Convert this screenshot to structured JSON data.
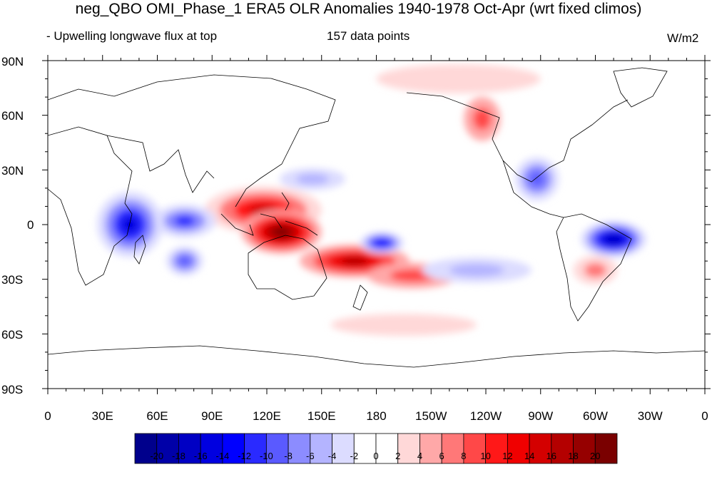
{
  "title": "neg_QBO OMI_Phase_1 ERA5 OLR Anomalies 1940-1978 Oct-Apr (wrt fixed climos)",
  "subtitle": "- Upwelling longwave flux at top",
  "data_points": "157 data points",
  "units": "W/m2",
  "lat_labels": [
    "90N",
    "60N",
    "30N",
    "0",
    "30S",
    "60S",
    "90S"
  ],
  "lon_labels": [
    "0",
    "30E",
    "60E",
    "90E",
    "120E",
    "150E",
    "180",
    "150W",
    "120W",
    "90W",
    "60W",
    "30W",
    "0"
  ],
  "colorbar": {
    "labels": [
      "-20",
      "-18",
      "-16",
      "-14",
      "-12",
      "-10",
      "-8",
      "-6",
      "-4",
      "-2",
      "0",
      "2",
      "4",
      "6",
      "8",
      "10",
      "12",
      "14",
      "16",
      "18",
      "20"
    ],
    "colors": [
      "#00008c",
      "#0000a8",
      "#0000c4",
      "#0000e0",
      "#0000ff",
      "#2a2aff",
      "#5a5aff",
      "#8c8cff",
      "#b4b4ff",
      "#dcdcff",
      "#ffffff",
      "#ffffff",
      "#ffd8d8",
      "#ffa8a8",
      "#ff7878",
      "#ff4848",
      "#ff1818",
      "#f00000",
      "#d40000",
      "#b40000",
      "#960000",
      "#7a0000"
    ]
  },
  "map_data": {
    "type": "filled-contour-map",
    "projection": "cylindrical-equidistant",
    "lon_range": [
      0,
      360
    ],
    "lat_range": [
      -90,
      90
    ],
    "anomalies": [
      {
        "name": "indian-ocean-pos",
        "lon": 118,
        "lat": 8,
        "rx": 32,
        "ry": 13,
        "level": 15
      },
      {
        "name": "maritime-pos",
        "lon": 128,
        "lat": -4,
        "rx": 22,
        "ry": 12,
        "level": 20
      },
      {
        "name": "spcz-pos",
        "lon": 168,
        "lat": -20,
        "rx": 30,
        "ry": 9,
        "level": 16
      },
      {
        "name": "spcz-tail-pos",
        "lon": 200,
        "lat": -28,
        "rx": 25,
        "ry": 7,
        "level": 8
      },
      {
        "name": "north-america-pos",
        "lon": 238,
        "lat": 58,
        "rx": 10,
        "ry": 12,
        "level": 8
      },
      {
        "name": "arctic-pos",
        "lon": 225,
        "lat": 80,
        "rx": 45,
        "ry": 8,
        "level": 3
      },
      {
        "name": "south-atlantic-pos",
        "lon": 300,
        "lat": -25,
        "rx": 12,
        "ry": 8,
        "level": 6
      },
      {
        "name": "southern-ocean-pos",
        "lon": 195,
        "lat": -55,
        "rx": 40,
        "ry": 6,
        "level": 3
      },
      {
        "name": "africa-neg",
        "lon": 45,
        "lat": 0,
        "rx": 18,
        "ry": 18,
        "level": -16
      },
      {
        "name": "indian-ocean-neg",
        "lon": 75,
        "lat": 2,
        "rx": 17,
        "ry": 9,
        "level": -12
      },
      {
        "name": "south-indian-neg",
        "lon": 75,
        "lat": -20,
        "rx": 10,
        "ry": 8,
        "level": -10
      },
      {
        "name": "dateline-neg",
        "lon": 183,
        "lat": -10,
        "rx": 12,
        "ry": 6,
        "level": -14
      },
      {
        "name": "gulf-mexico-neg",
        "lon": 268,
        "lat": 25,
        "rx": 12,
        "ry": 12,
        "level": -10
      },
      {
        "name": "amazon-neg",
        "lon": 310,
        "lat": -8,
        "rx": 18,
        "ry": 10,
        "level": -18
      },
      {
        "name": "east-pacific-neg",
        "lon": 235,
        "lat": -25,
        "rx": 30,
        "ry": 7,
        "level": -6
      },
      {
        "name": "west-pacific-neg",
        "lon": 145,
        "lat": 25,
        "rx": 18,
        "ry": 6,
        "level": -6
      }
    ]
  }
}
